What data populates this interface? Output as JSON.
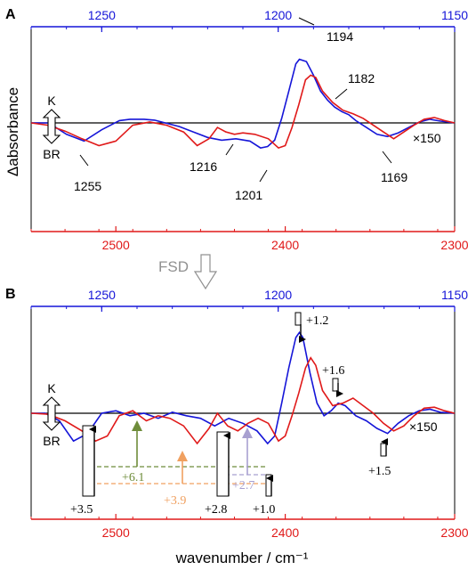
{
  "colors": {
    "blue": "#1515d8",
    "red": "#e01919",
    "black": "#000000",
    "olive": "#6e8c3a",
    "orange": "#f0a060",
    "lavender": "#a8a0d0",
    "gray": "#909090"
  },
  "ylabel": "Δabsorbance",
  "xlabel": "wavenumber / cm⁻¹",
  "fsd_label": "FSD",
  "chart_data": [
    {
      "panel_label": "A",
      "type": "line",
      "top_axis": {
        "min": 1150,
        "max": 1270,
        "reversed": true,
        "ticks": [
          1250,
          1200,
          1150
        ],
        "tick_labels": [
          "1250",
          "1200",
          "1150"
        ]
      },
      "bottom_axis": {
        "min": 2300,
        "max": 2550,
        "reversed": true,
        "ticks": [
          2500,
          2400,
          2300
        ],
        "tick_labels": [
          "2500",
          "2400",
          "2300"
        ]
      },
      "ylim": [
        -1.2,
        1.8
      ],
      "state_labels": {
        "top": "K",
        "bottom": "BR"
      },
      "scale_label": "×150",
      "series": [
        {
          "color": "blue",
          "axis": "top",
          "x": [
            1270,
            1265,
            1260,
            1255,
            1250,
            1245,
            1242,
            1238,
            1235,
            1232,
            1228,
            1224,
            1220,
            1216,
            1212,
            1208,
            1205,
            1203,
            1201,
            1199,
            1197,
            1195,
            1194,
            1192,
            1190,
            1188,
            1186,
            1184,
            1182,
            1180,
            1178,
            1175,
            1172,
            1169,
            1166,
            1163,
            1160,
            1157,
            1154,
            1150
          ],
          "y": [
            0.0,
            0.0,
            -0.25,
            -0.4,
            -0.15,
            0.05,
            0.08,
            0.08,
            0.06,
            0.0,
            -0.08,
            -0.2,
            -0.32,
            -0.38,
            -0.35,
            -0.4,
            -0.55,
            -0.52,
            -0.38,
            0.1,
            0.7,
            1.3,
            1.4,
            1.35,
            1.05,
            0.7,
            0.5,
            0.35,
            0.25,
            0.18,
            0.05,
            -0.1,
            -0.25,
            -0.3,
            -0.22,
            -0.1,
            0.02,
            0.08,
            0.04,
            0.0
          ]
        },
        {
          "color": "red",
          "axis": "bottom",
          "x": [
            2550,
            2540,
            2530,
            2520,
            2510,
            2500,
            2490,
            2480,
            2470,
            2460,
            2452,
            2445,
            2440,
            2435,
            2430,
            2425,
            2418,
            2410,
            2404,
            2400,
            2396,
            2392,
            2388,
            2385,
            2382,
            2378,
            2372,
            2366,
            2360,
            2354,
            2348,
            2342,
            2336,
            2330,
            2324,
            2318,
            2312,
            2306,
            2300
          ],
          "y": [
            0.0,
            -0.05,
            -0.18,
            -0.35,
            -0.5,
            -0.4,
            -0.05,
            0.02,
            -0.05,
            -0.2,
            -0.5,
            -0.35,
            -0.1,
            -0.2,
            -0.25,
            -0.22,
            -0.25,
            -0.35,
            -0.55,
            -0.5,
            -0.1,
            0.4,
            0.95,
            1.05,
            1.0,
            0.7,
            0.45,
            0.28,
            0.2,
            0.1,
            -0.05,
            -0.2,
            -0.35,
            -0.2,
            -0.05,
            0.08,
            0.12,
            0.05,
            0.0
          ]
        }
      ],
      "annotations": [
        {
          "text": "1255",
          "axis": "top",
          "x": 1255,
          "color": "blue"
        },
        {
          "text": "1216",
          "axis": "top",
          "x": 1216,
          "color": "blue"
        },
        {
          "text": "1201",
          "axis": "top",
          "x": 1201,
          "color": "blue"
        },
        {
          "text": "1194",
          "axis": "top",
          "x": 1194,
          "color": "blue"
        },
        {
          "text": "1182",
          "axis": "top",
          "x": 1182,
          "color": "blue"
        },
        {
          "text": "1169",
          "axis": "top",
          "x": 1169,
          "color": "blue"
        }
      ]
    },
    {
      "panel_label": "B",
      "type": "line",
      "top_axis": {
        "min": 1150,
        "max": 1270,
        "reversed": true,
        "ticks": [
          1250,
          1200,
          1150
        ],
        "tick_labels": [
          "1250",
          "1200",
          "1150"
        ]
      },
      "bottom_axis": {
        "min": 2300,
        "max": 2550,
        "reversed": true,
        "ticks": [
          2500,
          2400,
          2300
        ],
        "tick_labels": [
          "2500",
          "2400",
          "2300"
        ]
      },
      "ylim": [
        -1.2,
        1.8
      ],
      "state_labels": {
        "top": "K",
        "bottom": "BR"
      },
      "scale_label": "×150",
      "series": [
        {
          "color": "blue",
          "axis": "top",
          "x": [
            1270,
            1266,
            1262,
            1258,
            1254,
            1250,
            1246,
            1242,
            1238,
            1234,
            1230,
            1226,
            1222,
            1218,
            1214,
            1210,
            1206,
            1203,
            1201,
            1199,
            1197,
            1195,
            1194,
            1193,
            1191,
            1189,
            1187,
            1185,
            1183,
            1181,
            1178,
            1175,
            1172,
            1169,
            1166,
            1163,
            1160,
            1157,
            1154,
            1150
          ],
          "y": [
            0.0,
            0.0,
            -0.15,
            -0.55,
            -0.4,
            0.0,
            0.05,
            -0.05,
            0.0,
            -0.1,
            0.02,
            -0.05,
            -0.1,
            -0.25,
            -0.1,
            -0.2,
            -0.35,
            -0.6,
            -0.45,
            0.2,
            0.9,
            1.5,
            1.6,
            1.5,
            0.8,
            0.2,
            -0.05,
            0.05,
            0.2,
            0.15,
            -0.05,
            -0.15,
            -0.3,
            -0.4,
            -0.2,
            -0.05,
            0.05,
            0.08,
            0.02,
            0.0
          ]
        },
        {
          "color": "red",
          "axis": "bottom",
          "x": [
            2550,
            2540,
            2530,
            2520,
            2512,
            2505,
            2498,
            2490,
            2482,
            2475,
            2468,
            2460,
            2452,
            2445,
            2440,
            2434,
            2428,
            2422,
            2416,
            2410,
            2404,
            2400,
            2396,
            2392,
            2388,
            2385,
            2382,
            2378,
            2372,
            2366,
            2360,
            2354,
            2348,
            2342,
            2336,
            2330,
            2324,
            2318,
            2312,
            2306,
            2300
          ],
          "y": [
            0.0,
            -0.02,
            -0.15,
            -0.35,
            -0.55,
            -0.45,
            -0.05,
            0.05,
            -0.15,
            -0.05,
            -0.1,
            -0.25,
            -0.6,
            -0.3,
            0.0,
            -0.25,
            -0.35,
            -0.2,
            -0.1,
            -0.2,
            -0.55,
            -0.45,
            -0.05,
            0.4,
            0.9,
            1.1,
            0.95,
            0.45,
            0.15,
            0.2,
            0.3,
            0.15,
            0.0,
            -0.2,
            -0.35,
            -0.25,
            -0.05,
            0.1,
            0.12,
            0.05,
            0.0
          ]
        }
      ],
      "annotations": [
        {
          "text": "+1.2",
          "axis": "top",
          "x": 1193.5,
          "color": "black"
        },
        {
          "text": "+1.6",
          "axis": "top",
          "x": 1182,
          "color": "black"
        },
        {
          "text": "+1.5",
          "axis": "top",
          "x": 1169,
          "color": "black"
        },
        {
          "text": "+3.5",
          "axis": "bottom",
          "x": 2505,
          "color": "black"
        },
        {
          "text": "+6.1",
          "axis": "bottom",
          "x": 2479,
          "color": "olive"
        },
        {
          "text": "+3.9",
          "axis": "bottom",
          "x": 2453,
          "color": "orange"
        },
        {
          "text": "+2.8",
          "axis": "bottom",
          "x": 2425,
          "color": "black"
        },
        {
          "text": "+2.7",
          "axis": "bottom",
          "x": 2417,
          "color": "lavender"
        },
        {
          "text": "+1.0",
          "axis": "bottom",
          "x": 2402,
          "color": "black"
        }
      ]
    }
  ]
}
